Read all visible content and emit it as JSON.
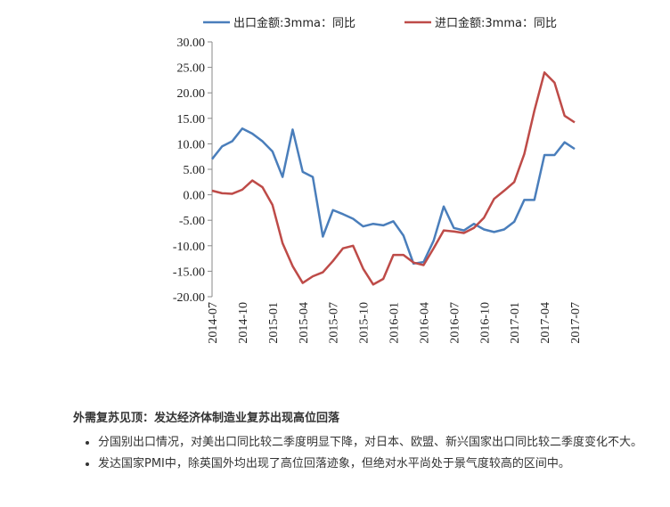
{
  "chart_data": {
    "type": "line",
    "categories": [
      "2014-07",
      null,
      null,
      "2014-10",
      null,
      null,
      "2015-01",
      null,
      null,
      "2015-04",
      null,
      null,
      "2015-07",
      null,
      null,
      "2015-10",
      null,
      null,
      "2016-01",
      null,
      null,
      "2016-04",
      null,
      null,
      "2016-07",
      null,
      null,
      "2016-10",
      null,
      null,
      "2017-01",
      null,
      null,
      "2017-04",
      null,
      null,
      "2017-07"
    ],
    "series": [
      {
        "name": "出口金额:3mma：同比",
        "color": "#4a7ebb",
        "values": [
          7,
          9.5,
          10.5,
          13,
          12,
          10.5,
          8.5,
          3.5,
          12.8,
          4.5,
          3.5,
          -8.2,
          -3,
          -3.8,
          -4.7,
          -6.2,
          -5.7,
          -6,
          -5.2,
          -8,
          -13.5,
          -13.2,
          -9,
          -2.3,
          -6.5,
          -7,
          -5.7,
          -6.8,
          -7.3,
          -6.8,
          -5.3,
          -1,
          -1,
          7.8,
          7.8,
          10.3,
          9
        ]
      },
      {
        "name": "进口金额:3mma：同比",
        "color": "#be4b48",
        "values": [
          0.8,
          0.3,
          0.2,
          1,
          2.8,
          1.5,
          -2,
          -9.5,
          -14,
          -17.3,
          -16,
          -15.2,
          -13,
          -10.5,
          -10,
          -14.5,
          -17.6,
          -16.5,
          -11.8,
          -11.8,
          -13.3,
          -13.8,
          -10.5,
          -7,
          -7.2,
          -7.5,
          -6.5,
          -4.5,
          -0.8,
          0.8,
          2.5,
          8,
          16.5,
          24,
          22,
          15.5,
          14.2
        ]
      }
    ],
    "ylim": [
      -20,
      30
    ],
    "yticks": [
      {
        "value": 30,
        "label": "30.00"
      },
      {
        "value": 25,
        "label": "25.00"
      },
      {
        "value": 20,
        "label": "20.00"
      },
      {
        "value": 15,
        "label": "15.00"
      },
      {
        "value": 10,
        "label": "10.00"
      },
      {
        "value": 5,
        "label": "5.00"
      },
      {
        "value": 0,
        "label": "0.00"
      },
      {
        "value": -5,
        "label": "-5.00"
      },
      {
        "value": -10,
        "label": "-10.00"
      },
      {
        "value": -15,
        "label": "-15.00"
      },
      {
        "value": -20,
        "label": "-20.00"
      }
    ],
    "grid": false,
    "legend": "top"
  },
  "text": {
    "heading": "外需复苏见顶：发达经济体制造业复苏出现高位回落",
    "bullets": [
      "分国别出口情况，对美出口同比较二季度明显下降，对日本、欧盟、新兴国家出口同比较二季度变化不大。",
      "发达国家PMI中，除英国外均出现了高位回落迹象，但绝对水平尚处于景气度较高的区间中。"
    ]
  }
}
